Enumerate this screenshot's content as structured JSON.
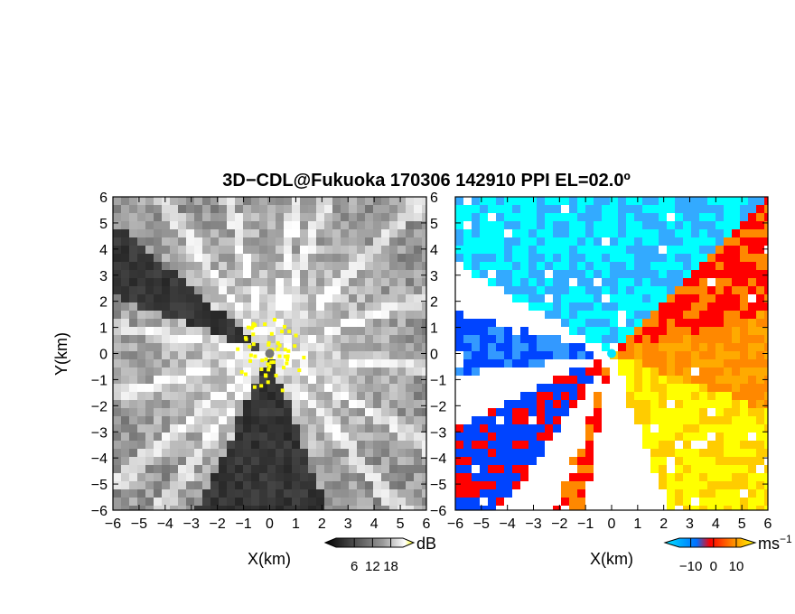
{
  "chart_data": [
    {
      "type": "heatmap",
      "title": "3D−CDL@Fukuoka 170306 142910 PPI EL=02.0º",
      "xlabel": "X(km)",
      "ylabel": "Y(km)",
      "xlim": [
        -6,
        6
      ],
      "ylim": [
        -6,
        6
      ],
      "x_ticks": [
        "−6",
        "−5",
        "−4",
        "−3",
        "−2",
        "−1",
        "0",
        "1",
        "2",
        "3",
        "4",
        "5",
        "6"
      ],
      "y_ticks": [
        "6",
        "5",
        "4",
        "3",
        "2",
        "1",
        "0",
        "−1",
        "−2",
        "−3",
        "−4",
        "−5",
        "−6"
      ],
      "colormap": [
        "#000000",
        "#555555",
        "#aaaaaa",
        "#ffffff",
        "#ffff00"
      ],
      "colorbar": {
        "unit": "dB",
        "ticks": [
          "6",
          "12",
          "18"
        ],
        "tick_values": [
          6,
          12,
          18
        ]
      },
      "radar_center_km": [
        0,
        0
      ]
    },
    {
      "type": "heatmap",
      "xlabel": "X(km)",
      "xlim": [
        -6,
        6
      ],
      "ylim": [
        -6,
        6
      ],
      "x_ticks": [
        "−6",
        "−5",
        "−4",
        "−3",
        "−2",
        "−1",
        "0",
        "1",
        "2",
        "3",
        "4",
        "5",
        "6"
      ],
      "y_ticks": [
        "6",
        "5",
        "4",
        "3",
        "2",
        "1",
        "0",
        "−1",
        "−2",
        "−3",
        "−4",
        "−5",
        "−6"
      ],
      "colormap": [
        "#00ffff",
        "#0044ff",
        "#ff0000",
        "#ff8800",
        "#ffff00"
      ],
      "colorbar": {
        "unit": "ms",
        "unit_exponent": "−1",
        "ticks": [
          "−10",
          "0",
          "10"
        ],
        "tick_values": [
          -10,
          0,
          10
        ]
      },
      "radar_center_km": [
        0,
        0
      ]
    }
  ]
}
